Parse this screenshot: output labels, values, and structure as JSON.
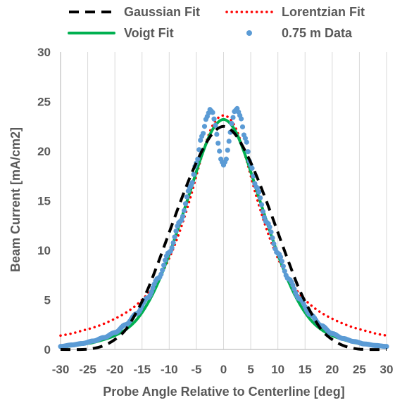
{
  "chart_data": {
    "type": "line",
    "title": "",
    "xlabel": "Probe Angle Relative to Centerline [deg]",
    "ylabel": "Beam Current [mA/cm2]",
    "xlim": [
      -30,
      30
    ],
    "ylim": [
      0,
      30
    ],
    "xticks": [
      -30,
      -25,
      -20,
      -15,
      -10,
      -5,
      0,
      5,
      10,
      15,
      20,
      25,
      30
    ],
    "yticks": [
      0,
      5,
      10,
      15,
      20,
      25,
      30
    ],
    "grid": "vertical",
    "legend_position": "top",
    "colors": {
      "gaussian": "#000000",
      "lorentzian": "#ff0000",
      "voigt": "#00b050",
      "data": "#5b9bd5",
      "axis": "#bfbfbf",
      "text": "#595959"
    },
    "series": [
      {
        "name": "Gaussian Fit",
        "style": "dashed",
        "x": [
          -30,
          -26,
          -24,
          -22,
          -20,
          -18,
          -16,
          -14,
          -12,
          -10,
          -8,
          -6,
          -4,
          -2,
          0,
          2,
          4,
          6,
          8,
          10,
          12,
          14,
          16,
          18,
          20,
          22,
          24,
          26,
          30
        ],
        "y": [
          0,
          0,
          0.1,
          0.4,
          1.0,
          2.0,
          3.8,
          6.0,
          8.8,
          11.8,
          14.8,
          17.6,
          20.0,
          21.8,
          22.5,
          21.8,
          20.0,
          17.6,
          14.8,
          11.8,
          8.8,
          6.0,
          3.8,
          2.0,
          1.0,
          0.4,
          0.1,
          0,
          0
        ]
      },
      {
        "name": "Lorentzian Fit",
        "style": "dotted",
        "x": [
          -30,
          -28,
          -26,
          -24,
          -22,
          -20,
          -18,
          -16,
          -14,
          -12,
          -10,
          -8,
          -6,
          -4,
          -2,
          0,
          2,
          4,
          6,
          8,
          10,
          12,
          14,
          16,
          18,
          20,
          22,
          24,
          26,
          28,
          30
        ],
        "y": [
          1.4,
          1.6,
          1.9,
          2.2,
          2.6,
          3.1,
          3.7,
          4.5,
          5.6,
          7.1,
          9.2,
          12.0,
          15.5,
          19.5,
          22.6,
          23.6,
          22.6,
          19.5,
          15.5,
          12.0,
          9.2,
          7.1,
          5.6,
          4.5,
          3.7,
          3.1,
          2.6,
          2.2,
          1.9,
          1.6,
          1.4
        ]
      },
      {
        "name": "Voigt Fit",
        "style": "solid",
        "x": [
          -30,
          -28,
          -26,
          -24,
          -22,
          -20,
          -18,
          -16,
          -14,
          -12,
          -10,
          -8,
          -6,
          -4,
          -2,
          0,
          2,
          4,
          6,
          8,
          10,
          12,
          14,
          16,
          18,
          20,
          22,
          24,
          26,
          28,
          30
        ],
        "y": [
          0.2,
          0.35,
          0.5,
          0.7,
          1.0,
          1.4,
          2.0,
          3.0,
          4.6,
          6.8,
          9.6,
          12.8,
          16.2,
          19.6,
          22.2,
          23.2,
          22.2,
          19.6,
          16.2,
          12.8,
          9.6,
          6.8,
          4.6,
          3.0,
          2.0,
          1.4,
          1.0,
          0.7,
          0.5,
          0.35,
          0.2
        ]
      },
      {
        "name": "0.75 m Data",
        "style": "markers",
        "x": [
          -30,
          -28,
          -26,
          -24,
          -22,
          -20,
          -18,
          -16,
          -14,
          -12,
          -10,
          -8,
          -6,
          -5,
          -4,
          -3,
          -2.5,
          -2,
          -1.5,
          -1,
          -0.5,
          0,
          0.5,
          1,
          1.5,
          2,
          2.5,
          3,
          4,
          5,
          6,
          8,
          10,
          12,
          14,
          16,
          18,
          20,
          22,
          24,
          26,
          28,
          30
        ],
        "y": [
          0.3,
          0.45,
          0.6,
          0.85,
          1.2,
          1.7,
          2.5,
          3.6,
          5.2,
          7.2,
          9.8,
          12.9,
          16.5,
          18.8,
          21.5,
          23.5,
          24.2,
          23.9,
          22.6,
          20.8,
          19.2,
          18.6,
          19.2,
          21.0,
          22.8,
          24.0,
          24.3,
          23.6,
          21.3,
          18.6,
          16.4,
          12.8,
          9.7,
          7.1,
          5.1,
          3.5,
          2.4,
          1.6,
          1.1,
          0.8,
          0.55,
          0.4,
          0.3
        ]
      }
    ]
  }
}
